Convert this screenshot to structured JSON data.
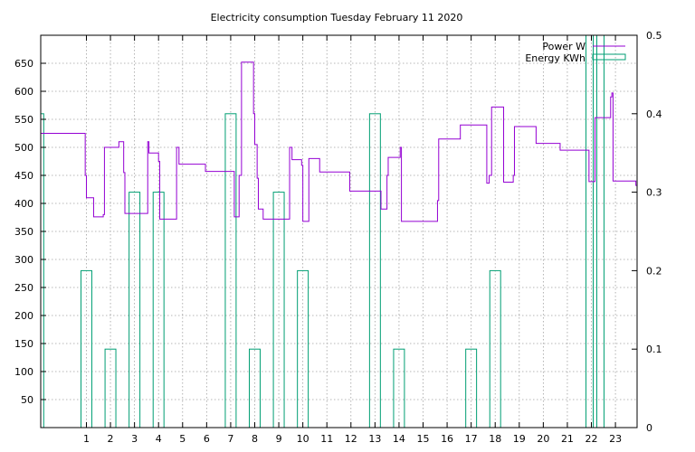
{
  "chart_data": {
    "type": "line",
    "title": "Electricity consumption Tuesday February 11 2020",
    "xlabel": "",
    "ylabel": "",
    "y2label": "",
    "xlim": [
      -0.9,
      23.9
    ],
    "ylim": [
      0,
      700
    ],
    "y2lim": [
      0,
      0.5
    ],
    "x_ticks": [
      1,
      2,
      3,
      4,
      5,
      6,
      7,
      8,
      9,
      10,
      11,
      12,
      13,
      14,
      15,
      16,
      17,
      18,
      19,
      20,
      21,
      22,
      23
    ],
    "y_ticks": [
      50,
      100,
      150,
      200,
      250,
      300,
      350,
      400,
      450,
      500,
      550,
      600,
      650
    ],
    "y2_ticks": [
      0,
      0.1,
      0.2,
      0.3,
      0.4,
      0.5
    ],
    "grid": true,
    "legend_position": "top-right",
    "series": [
      {
        "name": "Power W",
        "axis": "y1",
        "style": "steps",
        "color": "#9400d3",
        "points": [
          [
            -0.9,
            525
          ],
          [
            0.9,
            525
          ],
          [
            0.95,
            450
          ],
          [
            1.0,
            410
          ],
          [
            1.25,
            410
          ],
          [
            1.3,
            376
          ],
          [
            1.65,
            376
          ],
          [
            1.7,
            380
          ],
          [
            1.75,
            500
          ],
          [
            2.3,
            500
          ],
          [
            2.35,
            510
          ],
          [
            2.5,
            510
          ],
          [
            2.55,
            455
          ],
          [
            2.6,
            382
          ],
          [
            3.5,
            382
          ],
          [
            3.55,
            510
          ],
          [
            3.6,
            490
          ],
          [
            3.95,
            490
          ],
          [
            4.0,
            475
          ],
          [
            4.05,
            372
          ],
          [
            4.7,
            372
          ],
          [
            4.75,
            500
          ],
          [
            4.85,
            470
          ],
          [
            5.9,
            470
          ],
          [
            5.95,
            457
          ],
          [
            7.1,
            457
          ],
          [
            7.15,
            376
          ],
          [
            7.3,
            376
          ],
          [
            7.35,
            450
          ],
          [
            7.45,
            652
          ],
          [
            7.9,
            652
          ],
          [
            7.95,
            560
          ],
          [
            8.0,
            505
          ],
          [
            8.05,
            505
          ],
          [
            8.1,
            445
          ],
          [
            8.15,
            390
          ],
          [
            8.3,
            390
          ],
          [
            8.35,
            372
          ],
          [
            9.4,
            372
          ],
          [
            9.45,
            500
          ],
          [
            9.55,
            478
          ],
          [
            9.9,
            478
          ],
          [
            9.95,
            468
          ],
          [
            10.0,
            368
          ],
          [
            10.2,
            368
          ],
          [
            10.25,
            480
          ],
          [
            10.65,
            480
          ],
          [
            10.7,
            456
          ],
          [
            11.9,
            456
          ],
          [
            11.95,
            422
          ],
          [
            13.2,
            422
          ],
          [
            13.25,
            390
          ],
          [
            13.45,
            390
          ],
          [
            13.5,
            450
          ],
          [
            13.55,
            482
          ],
          [
            14.0,
            482
          ],
          [
            14.05,
            500
          ],
          [
            14.1,
            368
          ],
          [
            15.55,
            368
          ],
          [
            15.6,
            405
          ],
          [
            15.65,
            515
          ],
          [
            16.5,
            515
          ],
          [
            16.55,
            540
          ],
          [
            17.6,
            540
          ],
          [
            17.65,
            436
          ],
          [
            17.7,
            436
          ],
          [
            17.75,
            450
          ],
          [
            17.85,
            572
          ],
          [
            18.3,
            572
          ],
          [
            18.35,
            438
          ],
          [
            18.7,
            438
          ],
          [
            18.75,
            450
          ],
          [
            18.8,
            537
          ],
          [
            19.65,
            537
          ],
          [
            19.7,
            507
          ],
          [
            20.65,
            507
          ],
          [
            20.7,
            495
          ],
          [
            21.85,
            495
          ],
          [
            21.9,
            439
          ],
          [
            22.1,
            439
          ],
          [
            22.15,
            553
          ],
          [
            22.75,
            553
          ],
          [
            22.8,
            590
          ],
          [
            22.85,
            597
          ],
          [
            22.9,
            440
          ],
          [
            23.8,
            440
          ],
          [
            23.85,
            432
          ],
          [
            23.9,
            432
          ]
        ]
      },
      {
        "name": "Energy KWh",
        "axis": "y2",
        "style": "boxes",
        "color": "#009e73",
        "bars": [
          [
            -1,
            0.4
          ],
          [
            1,
            0.2
          ],
          [
            2,
            0.1
          ],
          [
            3,
            0.3
          ],
          [
            4,
            0.3
          ],
          [
            7,
            0.4
          ],
          [
            8,
            0.1
          ],
          [
            9,
            0.3
          ],
          [
            10,
            0.2
          ],
          [
            13,
            0.4
          ],
          [
            14,
            0.1
          ],
          [
            17,
            0.1
          ],
          [
            18,
            0.2
          ],
          [
            22,
            0.5
          ],
          [
            22.3,
            0.5
          ]
        ],
        "bar_width": 0.45
      }
    ]
  }
}
